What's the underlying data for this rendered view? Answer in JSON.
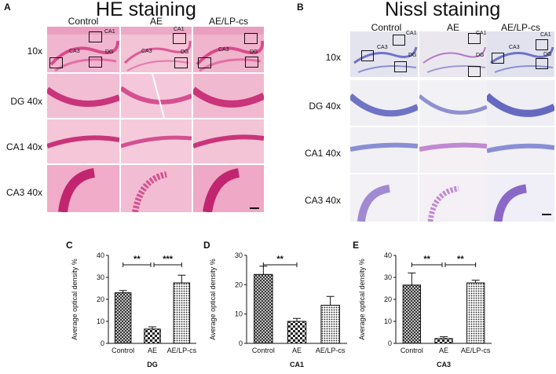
{
  "panels": {
    "A": {
      "letter": "A",
      "title": "HE staining",
      "columns": [
        "Control",
        "AE",
        "AE/LP-cs"
      ],
      "rows": [
        "10x",
        "DG 40x",
        "CA1 40x",
        "CA3 40x"
      ],
      "region_tags": [
        "CA1",
        "CA3",
        "DG"
      ],
      "color": "#e0609a"
    },
    "B": {
      "letter": "B",
      "title": "Nissl staining",
      "columns": [
        "Control",
        "AE",
        "AE/LP-cs"
      ],
      "rows": [
        "10x",
        "DG 40x",
        "CA1 40x",
        "CA3 40x"
      ],
      "region_tags": [
        "CA1",
        "CA3",
        "DG"
      ],
      "color": "#7f7fcf"
    }
  },
  "chart_data": [
    {
      "letter": "C",
      "type": "bar",
      "xlabel": "DG",
      "ylabel": "Average optical density %",
      "categories": [
        "Control",
        "AE",
        "AE/LP-cs"
      ],
      "values": [
        23.0,
        6.5,
        27.5
      ],
      "errors": [
        1.0,
        1.0,
        3.5
      ],
      "ylim": [
        0,
        40
      ],
      "yticks": [
        0,
        10,
        20,
        30,
        40
      ],
      "significance": [
        {
          "from": 0,
          "to": 1,
          "label": "**"
        },
        {
          "from": 1,
          "to": 2,
          "label": "***"
        }
      ]
    },
    {
      "letter": "D",
      "type": "bar",
      "xlabel": "CA1",
      "ylabel": "Average optical density %",
      "categories": [
        "Control",
        "AE",
        "AE/LP-cs"
      ],
      "values": [
        23.5,
        7.5,
        13.0
      ],
      "errors": [
        2.8,
        1.0,
        3.0
      ],
      "ylim": [
        0,
        30
      ],
      "yticks": [
        0,
        10,
        20,
        30
      ],
      "significance": [
        {
          "from": 0,
          "to": 1,
          "label": "**"
        }
      ]
    },
    {
      "letter": "E",
      "type": "bar",
      "xlabel": "CA3",
      "ylabel": "Average optical density %",
      "categories": [
        "Control",
        "AE",
        "AE/LP-cs"
      ],
      "values": [
        26.5,
        2.2,
        27.5
      ],
      "errors": [
        5.5,
        0.8,
        1.2
      ],
      "ylim": [
        0,
        40
      ],
      "yticks": [
        0,
        10,
        20,
        30,
        40
      ],
      "significance": [
        {
          "from": 0,
          "to": 1,
          "label": "**"
        },
        {
          "from": 1,
          "to": 2,
          "label": "**"
        }
      ]
    }
  ]
}
